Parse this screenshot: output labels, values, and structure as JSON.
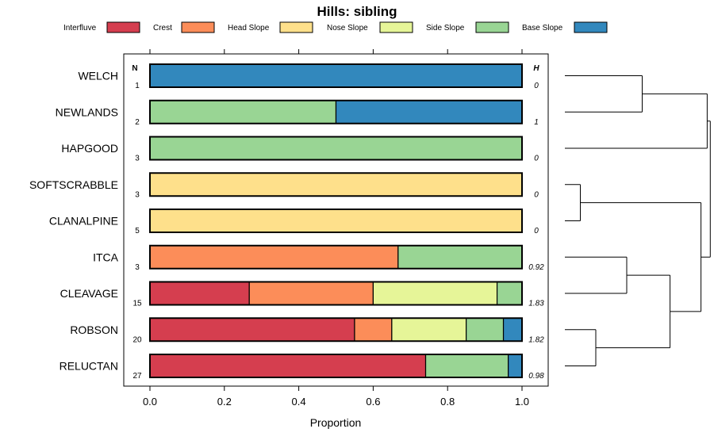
{
  "chart_data": {
    "type": "bar",
    "orientation": "horizontal",
    "stacked": true,
    "title": "Hills: sibling",
    "xlabel": "Proportion",
    "ylabel": "",
    "xlim": [
      0,
      1
    ],
    "x_ticks": [
      "0.0",
      "0.2",
      "0.4",
      "0.6",
      "0.8",
      "1.0"
    ],
    "x_tick_values": [
      0,
      0.2,
      0.4,
      0.6,
      0.8,
      1.0
    ],
    "n_header": "N",
    "h_header": "H",
    "legend_position": "top",
    "series": [
      {
        "name": "Interfluve",
        "color": "#d53e4f"
      },
      {
        "name": "Crest",
        "color": "#fc8d59"
      },
      {
        "name": "Head Slope",
        "color": "#fee08b"
      },
      {
        "name": "Nose Slope",
        "color": "#e6f598"
      },
      {
        "name": "Side Slope",
        "color": "#99d594"
      },
      {
        "name": "Base Slope",
        "color": "#3288bd"
      }
    ],
    "categories": [
      "WELCH",
      "NEWLANDS",
      "HAPGOOD",
      "SOFTSCRABBLE",
      "CLANALPINE",
      "ITCA",
      "CLEAVAGE",
      "ROBSON",
      "RELUCTAN"
    ],
    "n": [
      "1",
      "2",
      "3",
      "3",
      "5",
      "3",
      "15",
      "20",
      "27"
    ],
    "h": [
      "0",
      "1",
      "0",
      "0",
      "0",
      "0.92",
      "1.83",
      "1.82",
      "0.98"
    ],
    "values": [
      [
        0,
        0,
        0,
        0,
        0,
        1
      ],
      [
        0,
        0,
        0,
        0,
        0.5,
        0.5
      ],
      [
        0,
        0,
        0,
        0,
        1,
        0
      ],
      [
        0,
        0,
        1,
        0,
        0,
        0
      ],
      [
        0,
        0,
        1,
        0,
        0,
        0
      ],
      [
        0,
        0.667,
        0,
        0,
        0.333,
        0
      ],
      [
        0.267,
        0.333,
        0,
        0.333,
        0.067,
        0
      ],
      [
        0.55,
        0.1,
        0,
        0.2,
        0.1,
        0.05
      ],
      [
        0.741,
        0,
        0,
        0,
        0.222,
        0.037
      ]
    ],
    "dendrogram": {
      "description": "hierarchical clustering of rows",
      "merges": [
        {
          "left": "WELCH",
          "right": "NEWLANDS",
          "height": 0.25
        },
        {
          "left": "SOFTSCRABBLE",
          "right": "CLANALPINE",
          "height": 0.05
        },
        {
          "left": "ITCA",
          "right": "CLEAVAGE",
          "height": 0.2
        },
        {
          "left": "ROBSON",
          "right": "RELUCTAN",
          "height": 0.1
        },
        {
          "left": "m3",
          "right": "m4",
          "height": 0.34
        },
        {
          "left": "m2",
          "right": "m5",
          "height": 0.44
        },
        {
          "left": "m1",
          "right": "HAPGOOD",
          "height": 0.46
        },
        {
          "left": "m7",
          "right": "m6",
          "height": 0.47
        }
      ]
    }
  }
}
